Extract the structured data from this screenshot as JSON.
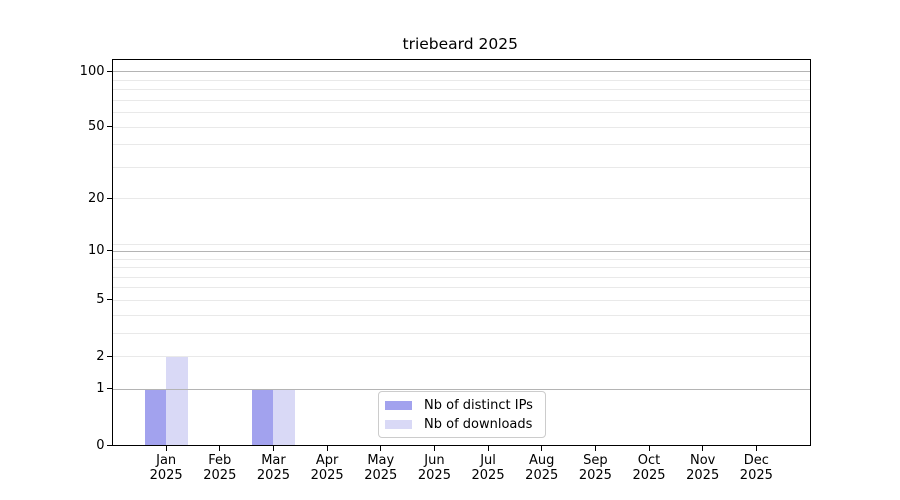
{
  "chart_data": {
    "type": "bar",
    "title": "triebeard 2025",
    "categories": [
      "Jan 2025",
      "Feb 2025",
      "Mar 2025",
      "Apr 2025",
      "May 2025",
      "Jun 2025",
      "Jul 2025",
      "Aug 2025",
      "Sep 2025",
      "Oct 2025",
      "Nov 2025",
      "Dec 2025"
    ],
    "series": [
      {
        "name": "Nb of distinct IPs",
        "color": "#a2a2ee",
        "values": [
          1,
          0,
          1,
          0,
          0,
          0,
          0,
          0,
          0,
          0,
          0,
          0
        ]
      },
      {
        "name": "Nb of downloads",
        "color": "#d9d9f6",
        "values": [
          2,
          0,
          1,
          0,
          0,
          0,
          0,
          0,
          0,
          0,
          0,
          0
        ]
      }
    ],
    "bar_width": 0.4,
    "x_axis": {
      "min": -1,
      "max": 12
    },
    "y_axis": {
      "scale": "log1p",
      "min": 0,
      "max": 115,
      "ticks": [
        {
          "value": 0,
          "label": "0"
        },
        {
          "value": 1,
          "label": "1"
        },
        {
          "value": 2,
          "label": "2"
        },
        {
          "value": 5,
          "label": "5"
        },
        {
          "value": 10,
          "label": "10"
        },
        {
          "value": 20,
          "label": "20"
        },
        {
          "value": 50,
          "label": "50"
        },
        {
          "value": 100,
          "label": "100"
        }
      ],
      "major_grid_values": [
        1,
        10,
        100
      ],
      "minor_grid_values": [
        2,
        3,
        4,
        5,
        6,
        7,
        8,
        9,
        11,
        20,
        30,
        40,
        50,
        60,
        70,
        80,
        90
      ]
    },
    "legend": {
      "position": "lower center"
    },
    "grid": true,
    "colors": {
      "major_grid": "#b4b4b4",
      "minor_grid": "#e9e9e9",
      "spine": "#000000",
      "background": "#ffffff",
      "text": "#000000",
      "legend_border": "#cccccc"
    }
  }
}
